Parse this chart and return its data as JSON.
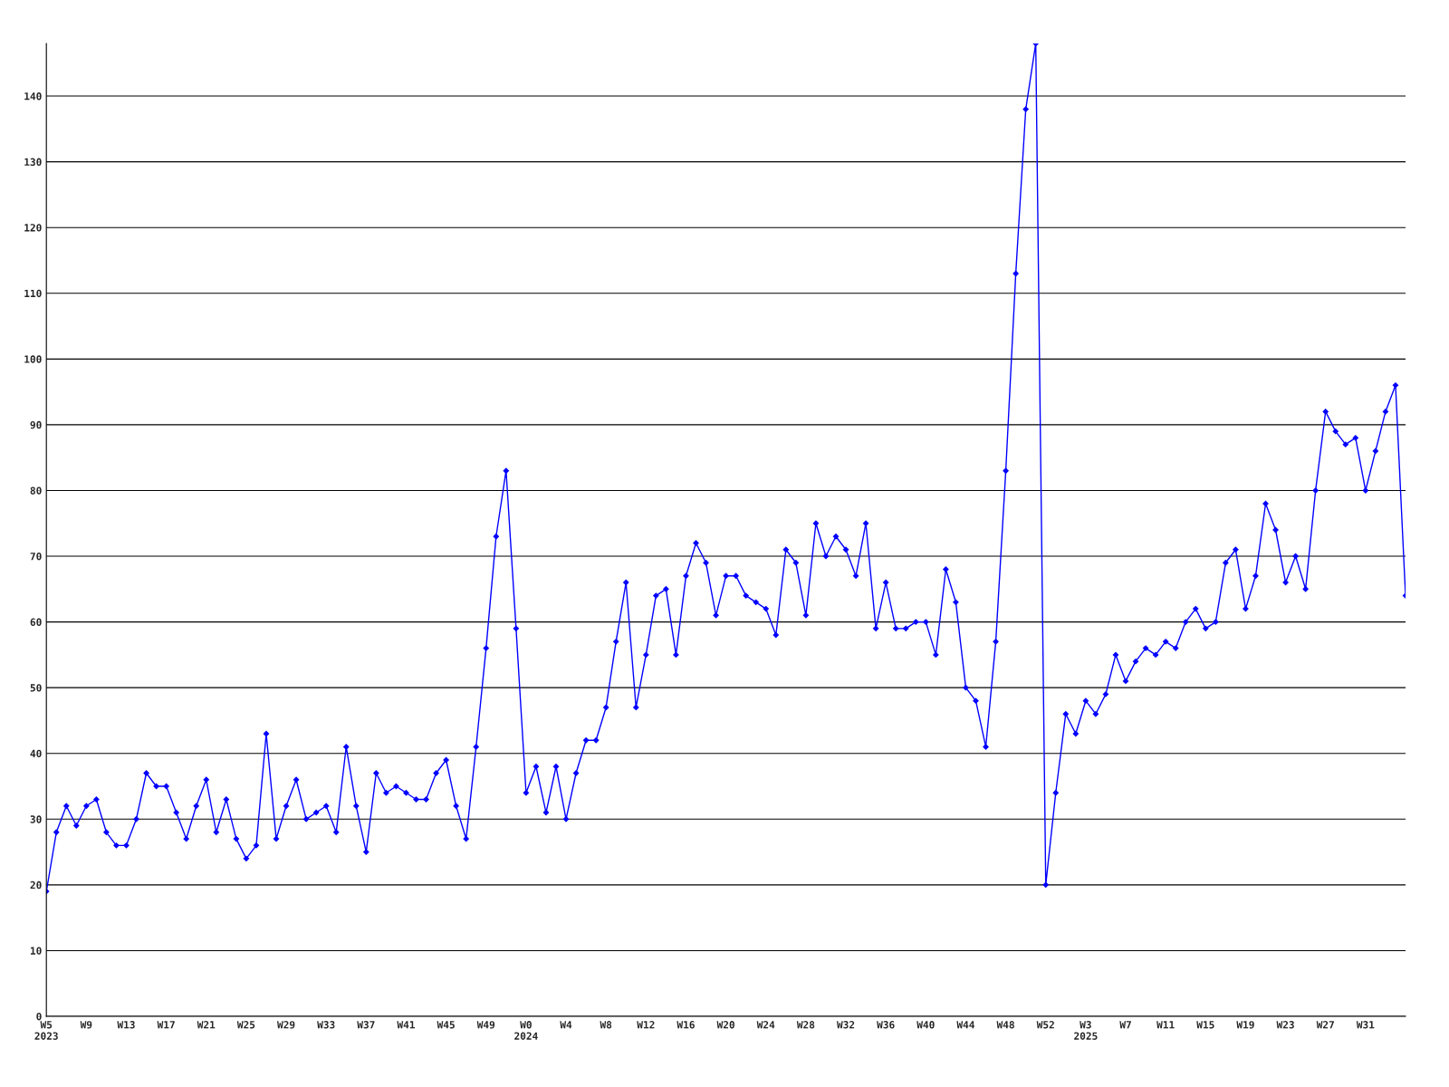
{
  "chart_data": {
    "type": "line",
    "categories": [
      "W5\n2023",
      null,
      null,
      null,
      "W9",
      null,
      null,
      null,
      "W13",
      null,
      null,
      null,
      "W17",
      null,
      null,
      null,
      "W21",
      null,
      null,
      null,
      "W25",
      null,
      null,
      null,
      "W29",
      null,
      null,
      null,
      "W33",
      null,
      null,
      null,
      "W37",
      null,
      null,
      null,
      "W41",
      null,
      null,
      null,
      "W45",
      null,
      null,
      null,
      "W49",
      null,
      null,
      null,
      "W0\n2024",
      null,
      null,
      null,
      "W4",
      null,
      null,
      null,
      "W8",
      null,
      null,
      null,
      "W12",
      null,
      null,
      null,
      "W16",
      null,
      null,
      null,
      "W20",
      null,
      null,
      null,
      "W24",
      null,
      null,
      null,
      "W28",
      null,
      null,
      null,
      "W32",
      null,
      null,
      null,
      "W36",
      null,
      null,
      null,
      "W40",
      null,
      null,
      null,
      "W44",
      null,
      null,
      null,
      "W48",
      null,
      null,
      null,
      "W52",
      null,
      null,
      null,
      "W3\n2025",
      null,
      null,
      null,
      "W7",
      null,
      null,
      null,
      "W11",
      null,
      null,
      null,
      "W15",
      null,
      null,
      null,
      "W19",
      null,
      null,
      null,
      "W23",
      null,
      null,
      null,
      "W27",
      null,
      null,
      null,
      "W31",
      null,
      null,
      null,
      null
    ],
    "series": [
      {
        "color": "#0000ff",
        "values": [
          19,
          28,
          32,
          29,
          32,
          33,
          28,
          26,
          26,
          30,
          37,
          35,
          35,
          31,
          27,
          32,
          36,
          28,
          33,
          27,
          24,
          26,
          43,
          27,
          32,
          36,
          30,
          31,
          32,
          28,
          41,
          32,
          25,
          37,
          34,
          35,
          34,
          33,
          33,
          37,
          39,
          32,
          27,
          41,
          56,
          73,
          83,
          59,
          34,
          38,
          31,
          38,
          30,
          37,
          42,
          42,
          47,
          57,
          66,
          47,
          55,
          64,
          65,
          55,
          67,
          72,
          69,
          61,
          67,
          67,
          64,
          63,
          62,
          58,
          71,
          69,
          61,
          75,
          70,
          73,
          71,
          67,
          75,
          59,
          66,
          59,
          59,
          60,
          60,
          55,
          68,
          63,
          50,
          48,
          41,
          57,
          83,
          113,
          138,
          148,
          20,
          34,
          46,
          43,
          48,
          46,
          49,
          55,
          51,
          54,
          56,
          55,
          57,
          56,
          60,
          62,
          59,
          60,
          69,
          71,
          62,
          67,
          78,
          74,
          66,
          70,
          65,
          80,
          92,
          89,
          87,
          88,
          80,
          86,
          92,
          96,
          64
        ]
      }
    ],
    "ylim": [
      0,
      148
    ],
    "yticks": [
      0,
      10,
      20,
      30,
      40,
      50,
      60,
      70,
      80,
      90,
      100,
      110,
      120,
      130,
      140
    ],
    "grid": "y",
    "marker": "diamond",
    "line_style": "solid"
  }
}
